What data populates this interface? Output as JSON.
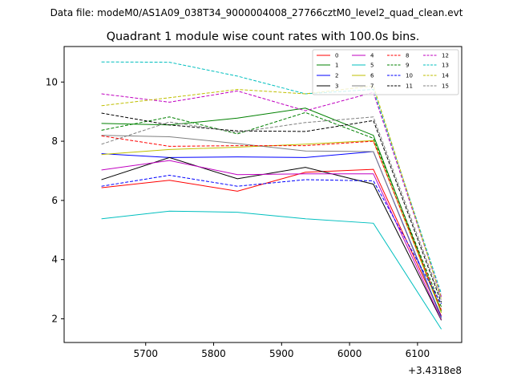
{
  "figure": {
    "suptitle": "Data file: modeM0/AS1A09_038T34_9000004008_27766cztM0_level2_quad_clean.evt"
  },
  "chart_data": {
    "type": "line",
    "title": "Quadrant 1 module wise count rates with 100.0s bins.",
    "xlabel": "",
    "ylabel": "",
    "x_offset_label": "+3.4318e8",
    "x": [
      5635,
      5735,
      5835,
      5935,
      6035,
      6135
    ],
    "xlim": [
      5580,
      6165
    ],
    "ylim": [
      1.2,
      11.2
    ],
    "xticks": [
      5700,
      5800,
      5900,
      6000,
      6100
    ],
    "yticks": [
      2,
      4,
      6,
      8,
      10
    ],
    "legend_position": "top-right",
    "series": [
      {
        "name": "0",
        "color": "#ff0000",
        "style": "solid",
        "values": [
          6.43,
          6.68,
          6.31,
          6.95,
          7.05,
          2.1
        ]
      },
      {
        "name": "1",
        "color": "#008000",
        "style": "solid",
        "values": [
          8.6,
          8.55,
          8.78,
          9.12,
          8.2,
          2.25
        ]
      },
      {
        "name": "2",
        "color": "#0000ff",
        "style": "solid",
        "values": [
          7.58,
          7.45,
          7.47,
          7.45,
          7.65,
          2.05
        ]
      },
      {
        "name": "3",
        "color": "#000000",
        "style": "solid",
        "values": [
          6.7,
          7.45,
          6.73,
          7.12,
          6.55,
          1.95
        ]
      },
      {
        "name": "4",
        "color": "#c000c0",
        "style": "solid",
        "values": [
          7.03,
          7.35,
          6.87,
          6.9,
          6.9,
          1.97
        ]
      },
      {
        "name": "5",
        "color": "#00bfbf",
        "style": "solid",
        "values": [
          5.38,
          5.64,
          5.6,
          5.38,
          5.23,
          1.65
        ]
      },
      {
        "name": "6",
        "color": "#bfbf00",
        "style": "solid",
        "values": [
          7.55,
          7.72,
          7.8,
          7.9,
          8.02,
          2.2
        ]
      },
      {
        "name": "7",
        "color": "#808080",
        "style": "solid",
        "values": [
          8.2,
          8.15,
          7.92,
          7.67,
          7.65,
          2.0
        ]
      },
      {
        "name": "8",
        "color": "#ff0000",
        "style": "dashed",
        "values": [
          8.18,
          7.83,
          7.85,
          7.85,
          8.0,
          2.3
        ]
      },
      {
        "name": "9",
        "color": "#008000",
        "style": "dashed",
        "values": [
          8.37,
          8.82,
          8.25,
          8.97,
          8.1,
          2.4
        ]
      },
      {
        "name": "10",
        "color": "#0000ff",
        "style": "dashed",
        "values": [
          6.48,
          6.85,
          6.48,
          6.7,
          6.66,
          2.5
        ]
      },
      {
        "name": "11",
        "color": "#000000",
        "style": "dashed",
        "values": [
          8.95,
          8.55,
          8.35,
          8.33,
          8.7,
          2.55
        ]
      },
      {
        "name": "12",
        "color": "#c000c0",
        "style": "dashed",
        "values": [
          9.6,
          9.32,
          9.7,
          9.03,
          9.65,
          2.75
        ]
      },
      {
        "name": "13",
        "color": "#00bfbf",
        "style": "dashed",
        "values": [
          10.68,
          10.67,
          10.2,
          9.6,
          9.75,
          2.85
        ]
      },
      {
        "name": "14",
        "color": "#bfbf00",
        "style": "dashed",
        "values": [
          9.2,
          9.47,
          9.75,
          9.6,
          9.87,
          2.7
        ]
      },
      {
        "name": "15",
        "color": "#808080",
        "style": "dashed",
        "values": [
          7.9,
          8.65,
          8.3,
          8.63,
          8.82,
          2.65
        ]
      }
    ]
  }
}
